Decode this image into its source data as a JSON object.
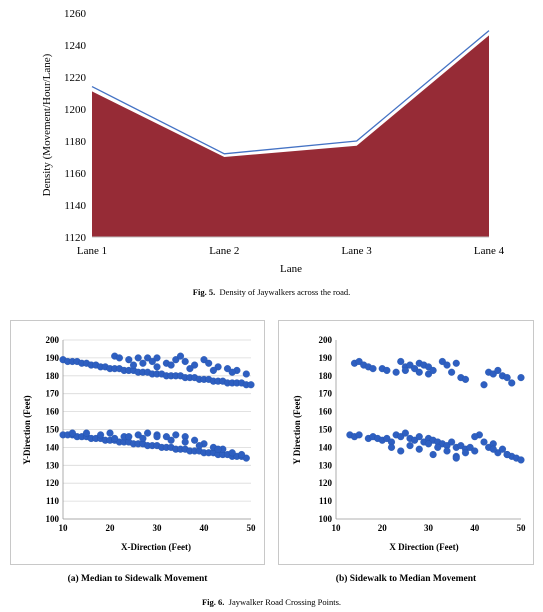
{
  "figure5": {
    "caption_label": "Fig. 5.",
    "caption_text": "Density of Jaywalkers across the road.",
    "chart_data": {
      "type": "area",
      "categories": [
        "Lane 1",
        "Lane 2",
        "Lane 3",
        "Lane 4"
      ],
      "series": [
        {
          "values": [
            1214,
            1172,
            1180,
            1249
          ],
          "color": "#4472C4",
          "style": "line"
        },
        {
          "values": [
            1211,
            1170,
            1177,
            1246
          ],
          "color": "#962B36",
          "style": "area"
        }
      ],
      "xlabel": "Lane",
      "ylabel": "Density (Movement/Hour/Lane)",
      "ylim": [
        1120,
        1260
      ],
      "yticks": [
        "1120",
        "1140",
        "1160",
        "1180",
        "1200",
        "1220",
        "1240",
        "1260"
      ],
      "grid": false
    }
  },
  "figure6": {
    "caption_label": "Fig. 6.",
    "caption_text": "Jaywalker Road Crossing Points.",
    "panels": [
      {
        "subcaption": "(a) Median to Sidewalk Movement",
        "chart_data": {
          "type": "scatter",
          "xlabel": "X-Direction (Feet)",
          "ylabel": "Y-Direction (Feet)",
          "xlim": [
            10,
            50
          ],
          "ylim": [
            100,
            200
          ],
          "xticks": [
            "10",
            "20",
            "30",
            "40",
            "50"
          ],
          "yticks": [
            "100",
            "110",
            "120",
            "130",
            "140",
            "150",
            "160",
            "170",
            "180",
            "190",
            "200"
          ],
          "marker_color": "#2E5FC1",
          "grid": true,
          "x": [
            10,
            11,
            12,
            13,
            14,
            15,
            16,
            17,
            18,
            19,
            20,
            21,
            22,
            23,
            24,
            25,
            26,
            27,
            28,
            29,
            30,
            31,
            32,
            33,
            34,
            35,
            36,
            37,
            38,
            39,
            40,
            41,
            42,
            43,
            44,
            45,
            46,
            47,
            48,
            49,
            50,
            21,
            22,
            24,
            26,
            28,
            29,
            30,
            32,
            34,
            35,
            36,
            38,
            40,
            41,
            43,
            45,
            47,
            49,
            25,
            27,
            30,
            33,
            37,
            42,
            46,
            10,
            11,
            12,
            13,
            14,
            15,
            16,
            17,
            18,
            19,
            20,
            21,
            22,
            23,
            24,
            25,
            26,
            27,
            28,
            29,
            30,
            31,
            32,
            33,
            34,
            35,
            36,
            37,
            38,
            39,
            40,
            41,
            42,
            43,
            44,
            45,
            46,
            47,
            48,
            49,
            12,
            15,
            18,
            20,
            23,
            26,
            28,
            30,
            32,
            34,
            36,
            38,
            40,
            42,
            44,
            46,
            48,
            21,
            24,
            27,
            30,
            33,
            36,
            39,
            43
          ],
          "y": [
            189,
            188,
            188,
            188,
            187,
            187,
            186,
            186,
            185,
            185,
            184,
            184,
            184,
            183,
            183,
            183,
            182,
            182,
            182,
            181,
            181,
            181,
            180,
            180,
            180,
            180,
            179,
            179,
            179,
            178,
            178,
            178,
            177,
            177,
            177,
            176,
            176,
            176,
            176,
            175,
            175,
            191,
            190,
            189,
            190,
            190,
            188,
            190,
            187,
            189,
            191,
            188,
            186,
            189,
            187,
            185,
            184,
            183,
            181,
            186,
            187,
            185,
            186,
            184,
            183,
            182,
            147,
            147,
            147,
            146,
            146,
            146,
            145,
            145,
            145,
            144,
            144,
            144,
            143,
            143,
            143,
            142,
            142,
            142,
            141,
            141,
            141,
            140,
            140,
            140,
            139,
            139,
            139,
            138,
            138,
            138,
            137,
            137,
            137,
            136,
            136,
            136,
            135,
            135,
            135,
            134,
            148,
            148,
            147,
            148,
            146,
            147,
            148,
            147,
            146,
            147,
            146,
            144,
            142,
            140,
            139,
            137,
            136,
            145,
            146,
            145,
            146,
            144,
            143,
            141,
            139
          ]
        }
      },
      {
        "subcaption": "(b) Sidewalk to Median Movement",
        "chart_data": {
          "type": "scatter",
          "xlabel": "X Direction (Feet)",
          "ylabel": "Y Direction (Feet)",
          "xlim": [
            10,
            50
          ],
          "ylim": [
            100,
            200
          ],
          "xticks": [
            "10",
            "20",
            "30",
            "40",
            "50"
          ],
          "yticks": [
            "100",
            "110",
            "120",
            "130",
            "140",
            "150",
            "160",
            "170",
            "180",
            "190",
            "200"
          ],
          "marker_color": "#2E5FC1",
          "grid": false,
          "x": [
            14,
            15,
            16,
            17,
            18,
            20,
            21,
            23,
            24,
            25,
            25,
            26,
            27,
            28,
            28,
            29,
            30,
            30,
            31,
            33,
            34,
            35,
            36,
            37,
            38,
            42,
            43,
            44,
            45,
            46,
            47,
            48,
            50,
            13,
            14,
            15,
            17,
            18,
            19,
            20,
            21,
            22,
            23,
            24,
            25,
            26,
            27,
            28,
            29,
            30,
            31,
            32,
            33,
            34,
            35,
            36,
            37,
            38,
            39,
            40,
            41,
            42,
            43,
            44,
            45,
            46,
            47,
            48,
            49,
            50,
            22,
            24,
            26,
            28,
            30,
            32,
            34,
            36,
            38,
            40,
            44,
            47,
            31,
            36
          ],
          "y": [
            187,
            188,
            186,
            185,
            184,
            184,
            183,
            182,
            188,
            185,
            183,
            186,
            184,
            187,
            182,
            186,
            181,
            185,
            183,
            188,
            186,
            182,
            187,
            179,
            178,
            175,
            182,
            181,
            183,
            180,
            179,
            176,
            179,
            147,
            146,
            147,
            145,
            146,
            145,
            144,
            145,
            143,
            147,
            146,
            148,
            145,
            144,
            146,
            143,
            145,
            144,
            143,
            142,
            141,
            143,
            140,
            141,
            139,
            140,
            138,
            147,
            143,
            140,
            142,
            137,
            139,
            136,
            135,
            134,
            133,
            140,
            138,
            141,
            139,
            142,
            140,
            138,
            135,
            137,
            146,
            139,
            136,
            136,
            134
          ]
        }
      }
    ]
  }
}
